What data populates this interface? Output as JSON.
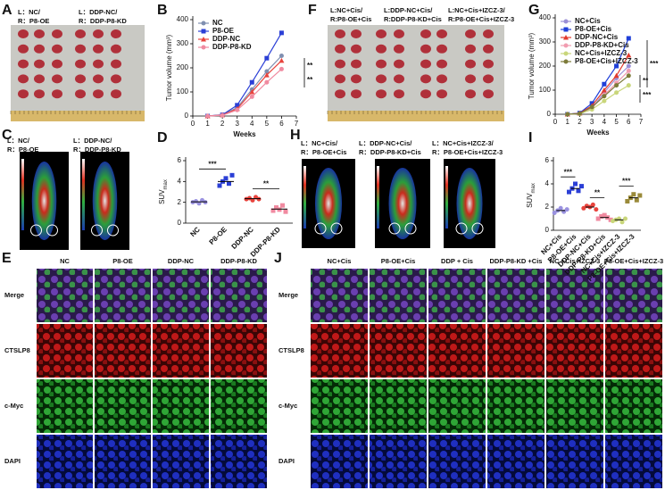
{
  "panels": {
    "A": {
      "letter": "A",
      "labels": [
        "L：NC/",
        "R：P8-OE",
        "L：DDP-NC/",
        "R：DDP-P8-KD"
      ]
    },
    "B": {
      "letter": "B"
    },
    "C": {
      "letter": "C",
      "labels": [
        "L：NC/",
        "R：P8-OE",
        "L：DDP-NC/",
        "R：DDP-P8-KD"
      ]
    },
    "D": {
      "letter": "D"
    },
    "E": {
      "letter": "E",
      "columns": [
        "NC",
        "P8-OE",
        "DDP-NC",
        "DDP-P8-KD"
      ],
      "rows": [
        "Merge",
        "CTSLP8",
        "c-Myc",
        "DAPI"
      ]
    },
    "F": {
      "letter": "F",
      "labels": [
        "L:NC+Cis/",
        "R:P8-OE+Cis",
        "L:DDP-NC+Cis/",
        "R:DDP-P8-KD+Cis",
        "L:NC+Cis+IZCZ-3/",
        "R:P8-OE+Cis+IZCZ-3"
      ]
    },
    "G": {
      "letter": "G"
    },
    "H": {
      "letter": "H",
      "labels": [
        "L：NC+Cis/",
        "R：P8-OE+Cis",
        "L：DDP-NC+Cis/",
        "R：DDP-P8-KD+Cis",
        "L：NC+Cis+IZCZ-3/",
        "R：P8-OE+Cis+IZCZ-3"
      ]
    },
    "I": {
      "letter": "I"
    },
    "J": {
      "letter": "J",
      "columns": [
        "NC+Cis",
        "P8-OE+Cis",
        "DDP + Cis",
        "DDP-P8-KD +Cis",
        "NC +Cis+IZCZ-3",
        "P8-OE+Cis+IZCZ-3"
      ],
      "rows": [
        "Merge",
        "CTSLP8",
        "c-Myc",
        "DAPI"
      ]
    }
  },
  "chart_data": [
    {
      "type": "line",
      "xlabel": "Weeks",
      "ylabel": "Tumor volume (mm³)",
      "x": [
        1,
        2,
        3,
        4,
        5,
        6
      ],
      "xlim": [
        0,
        7
      ],
      "xticks": [
        0,
        1,
        2,
        3,
        4,
        5,
        6,
        7
      ],
      "ylim": [
        0,
        400
      ],
      "yticks": [
        0,
        100,
        200,
        300,
        400
      ],
      "series": [
        {
          "name": "NC",
          "color": "#7f8fb0",
          "marker": "circle",
          "values": [
            0,
            4,
            35,
            110,
            185,
            250
          ]
        },
        {
          "name": "P8-OE",
          "color": "#2b3fd6",
          "marker": "square",
          "values": [
            0,
            5,
            45,
            140,
            240,
            345
          ]
        },
        {
          "name": "DDP-NC",
          "color": "#e8433c",
          "marker": "triangle",
          "values": [
            0,
            4,
            30,
            100,
            170,
            230
          ]
        },
        {
          "name": "DDP-P8-KD",
          "color": "#f08aa0",
          "marker": "circle",
          "values": [
            0,
            3,
            25,
            80,
            140,
            195
          ]
        }
      ],
      "annotations": [
        "**",
        "**"
      ]
    },
    {
      "type": "strip",
      "ylabel": "SUV",
      "ylabel_sub": "max",
      "categories": [
        "NC",
        "P8-OE",
        "DDP-NC",
        "DDP-P8-KD"
      ],
      "colors": [
        "#9a92e0",
        "#2b3fd6",
        "#e8433c",
        "#f08aa0"
      ],
      "values": [
        [
          2.0,
          2.1,
          1.9,
          2.2,
          2.0
        ],
        [
          3.6,
          4.0,
          4.3,
          3.8,
          4.6
        ],
        [
          2.3,
          2.4,
          2.2,
          2.5,
          2.3
        ],
        [
          1.2,
          1.5,
          1.3,
          1.7,
          1.1
        ]
      ],
      "means": [
        2.05,
        4.0,
        2.35,
        1.35
      ],
      "ylim": [
        0,
        6
      ],
      "yticks": [
        0,
        2,
        4,
        6
      ],
      "annotations": [
        "***",
        "**"
      ]
    },
    {
      "type": "line",
      "xlabel": "Weeks",
      "ylabel": "Tumor volume (mm³)",
      "x": [
        1,
        2,
        3,
        4,
        5,
        6
      ],
      "xlim": [
        0,
        7
      ],
      "xticks": [
        0,
        1,
        2,
        3,
        4,
        5,
        6,
        7
      ],
      "ylim": [
        0,
        400
      ],
      "yticks": [
        0,
        100,
        200,
        300,
        400
      ],
      "series": [
        {
          "name": "NC+Cis",
          "color": "#9b8fd6",
          "marker": "circle",
          "values": [
            0,
            3,
            25,
            90,
            150,
            200
          ]
        },
        {
          "name": "P8-OE+Cis",
          "color": "#1f3fd8",
          "marker": "square",
          "values": [
            0,
            5,
            45,
            125,
            200,
            315
          ]
        },
        {
          "name": "DDP-NC+Cis",
          "color": "#e23a2e",
          "marker": "triangle",
          "values": [
            0,
            4,
            35,
            100,
            160,
            245
          ]
        },
        {
          "name": "DDP-P8-KD+Cis",
          "color": "#f19cb0",
          "marker": "circle",
          "values": [
            0,
            3,
            25,
            80,
            130,
            180
          ]
        },
        {
          "name": "NC+Cis+IZCZ-3",
          "color": "#c9d67a",
          "marker": "circle",
          "values": [
            0,
            2,
            20,
            55,
            90,
            120
          ]
        },
        {
          "name": "P8-OE+Cis+IZCZ-3",
          "color": "#7d7b3a",
          "marker": "circle",
          "values": [
            0,
            3,
            30,
            75,
            120,
            160
          ]
        }
      ],
      "annotations": [
        "***",
        "**",
        "***"
      ]
    },
    {
      "type": "strip",
      "ylabel": "SUV",
      "ylabel_sub": "max",
      "categories": [
        "NC+Cis",
        "P8-OE+Cis",
        "DDP-NC+Cis",
        "DDP-P8-KD+Cis",
        "NC+Cis+IZCZ-3",
        "P8-OE+Cis+IZCZ-3"
      ],
      "colors": [
        "#9a92e0",
        "#2b3fd6",
        "#e8433c",
        "#f08aa0",
        "#c9d67a",
        "#9a8a3a"
      ],
      "values": [
        [
          1.5,
          1.7,
          1.9,
          1.6,
          1.8
        ],
        [
          3.3,
          3.6,
          4.0,
          3.4,
          3.8
        ],
        [
          1.9,
          2.1,
          2.0,
          2.2,
          1.8
        ],
        [
          1.0,
          1.2,
          1.3,
          1.1,
          0.9
        ],
        [
          0.8,
          0.9,
          1.0,
          0.7,
          1.0
        ],
        [
          2.5,
          2.8,
          3.1,
          2.6,
          3.0
        ]
      ],
      "means": [
        1.7,
        3.6,
        2.0,
        1.1,
        0.9,
        2.8
      ],
      "ylim": [
        0,
        6
      ],
      "yticks": [
        0,
        2,
        4,
        6
      ],
      "annotations": [
        "***",
        "**",
        "***"
      ]
    }
  ]
}
